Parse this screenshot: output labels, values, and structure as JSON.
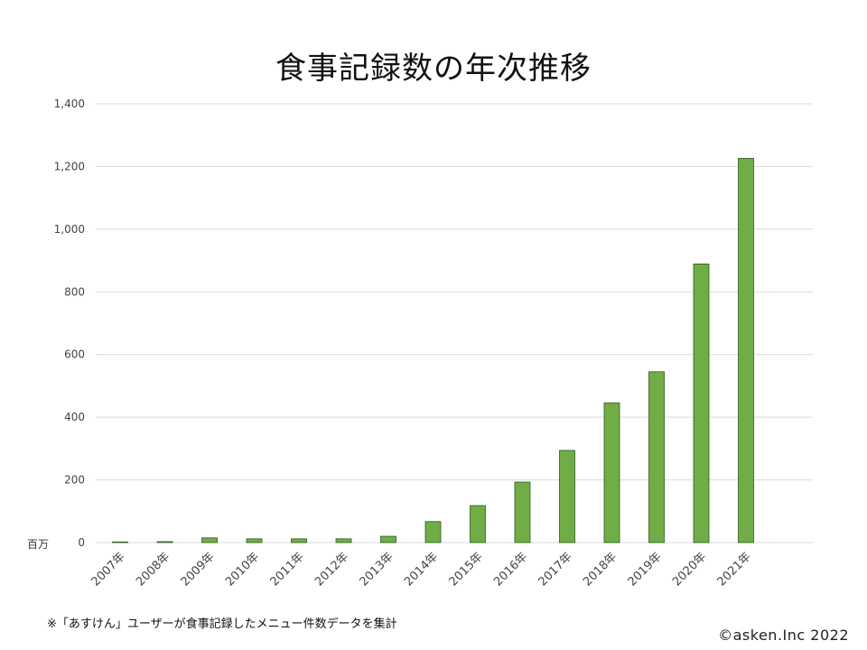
{
  "chart_data": {
    "type": "bar",
    "title": "食事記録数の年次推移",
    "unit_label": "百万",
    "categories": [
      "2007年",
      "2008年",
      "2009年",
      "2010年",
      "2011年",
      "2012年",
      "2013年",
      "2014年",
      "2015年",
      "2016年",
      "2017年",
      "2018年",
      "2019年",
      "2020年",
      "2021年"
    ],
    "values": [
      2,
      3,
      15,
      12,
      12,
      12,
      20,
      67,
      118,
      193,
      294,
      446,
      545,
      889,
      1226
    ],
    "ylim": [
      0,
      1400
    ],
    "yticks": [
      "0",
      "200",
      "400",
      "600",
      "800",
      "1,000",
      "1,200",
      "1,400"
    ],
    "grid": true,
    "bar_color": "#70ad47",
    "bar_edge_color": "#2e5a1c"
  },
  "footnote": "※「あすけん」ユーザーが食事記録したメニュー件数データを集計",
  "copyright": "©asken.Inc 2022"
}
